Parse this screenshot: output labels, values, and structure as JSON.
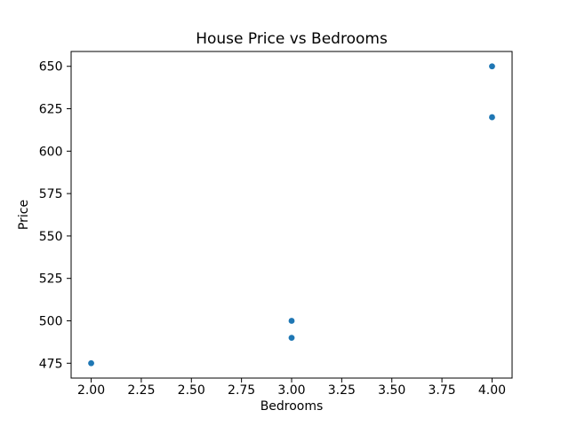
{
  "chart_data": {
    "type": "scatter",
    "title": "House Price vs Bedrooms",
    "xlabel": "Bedrooms",
    "ylabel": "Price",
    "points": [
      {
        "x": 2.0,
        "y": 475
      },
      {
        "x": 3.0,
        "y": 490
      },
      {
        "x": 3.0,
        "y": 500
      },
      {
        "x": 4.0,
        "y": 620
      },
      {
        "x": 4.0,
        "y": 650
      }
    ],
    "xlim": [
      1.9,
      4.1
    ],
    "ylim": [
      466.25,
      658.75
    ],
    "xticks": [
      {
        "value": 2.0,
        "label": "2.00"
      },
      {
        "value": 2.25,
        "label": "2.25"
      },
      {
        "value": 2.5,
        "label": "2.50"
      },
      {
        "value": 2.75,
        "label": "2.75"
      },
      {
        "value": 3.0,
        "label": "3.00"
      },
      {
        "value": 3.25,
        "label": "3.25"
      },
      {
        "value": 3.5,
        "label": "3.50"
      },
      {
        "value": 3.75,
        "label": "3.75"
      },
      {
        "value": 4.0,
        "label": "4.00"
      }
    ],
    "yticks": [
      {
        "value": 475,
        "label": "475"
      },
      {
        "value": 500,
        "label": "500"
      },
      {
        "value": 525,
        "label": "525"
      },
      {
        "value": 550,
        "label": "550"
      },
      {
        "value": 575,
        "label": "575"
      },
      {
        "value": 600,
        "label": "600"
      },
      {
        "value": 625,
        "label": "625"
      },
      {
        "value": 650,
        "label": "650"
      }
    ],
    "marker_color": "#1f77b4",
    "axis_color": "#000000",
    "background_color": "#ffffff",
    "grid": false,
    "legend": null
  }
}
